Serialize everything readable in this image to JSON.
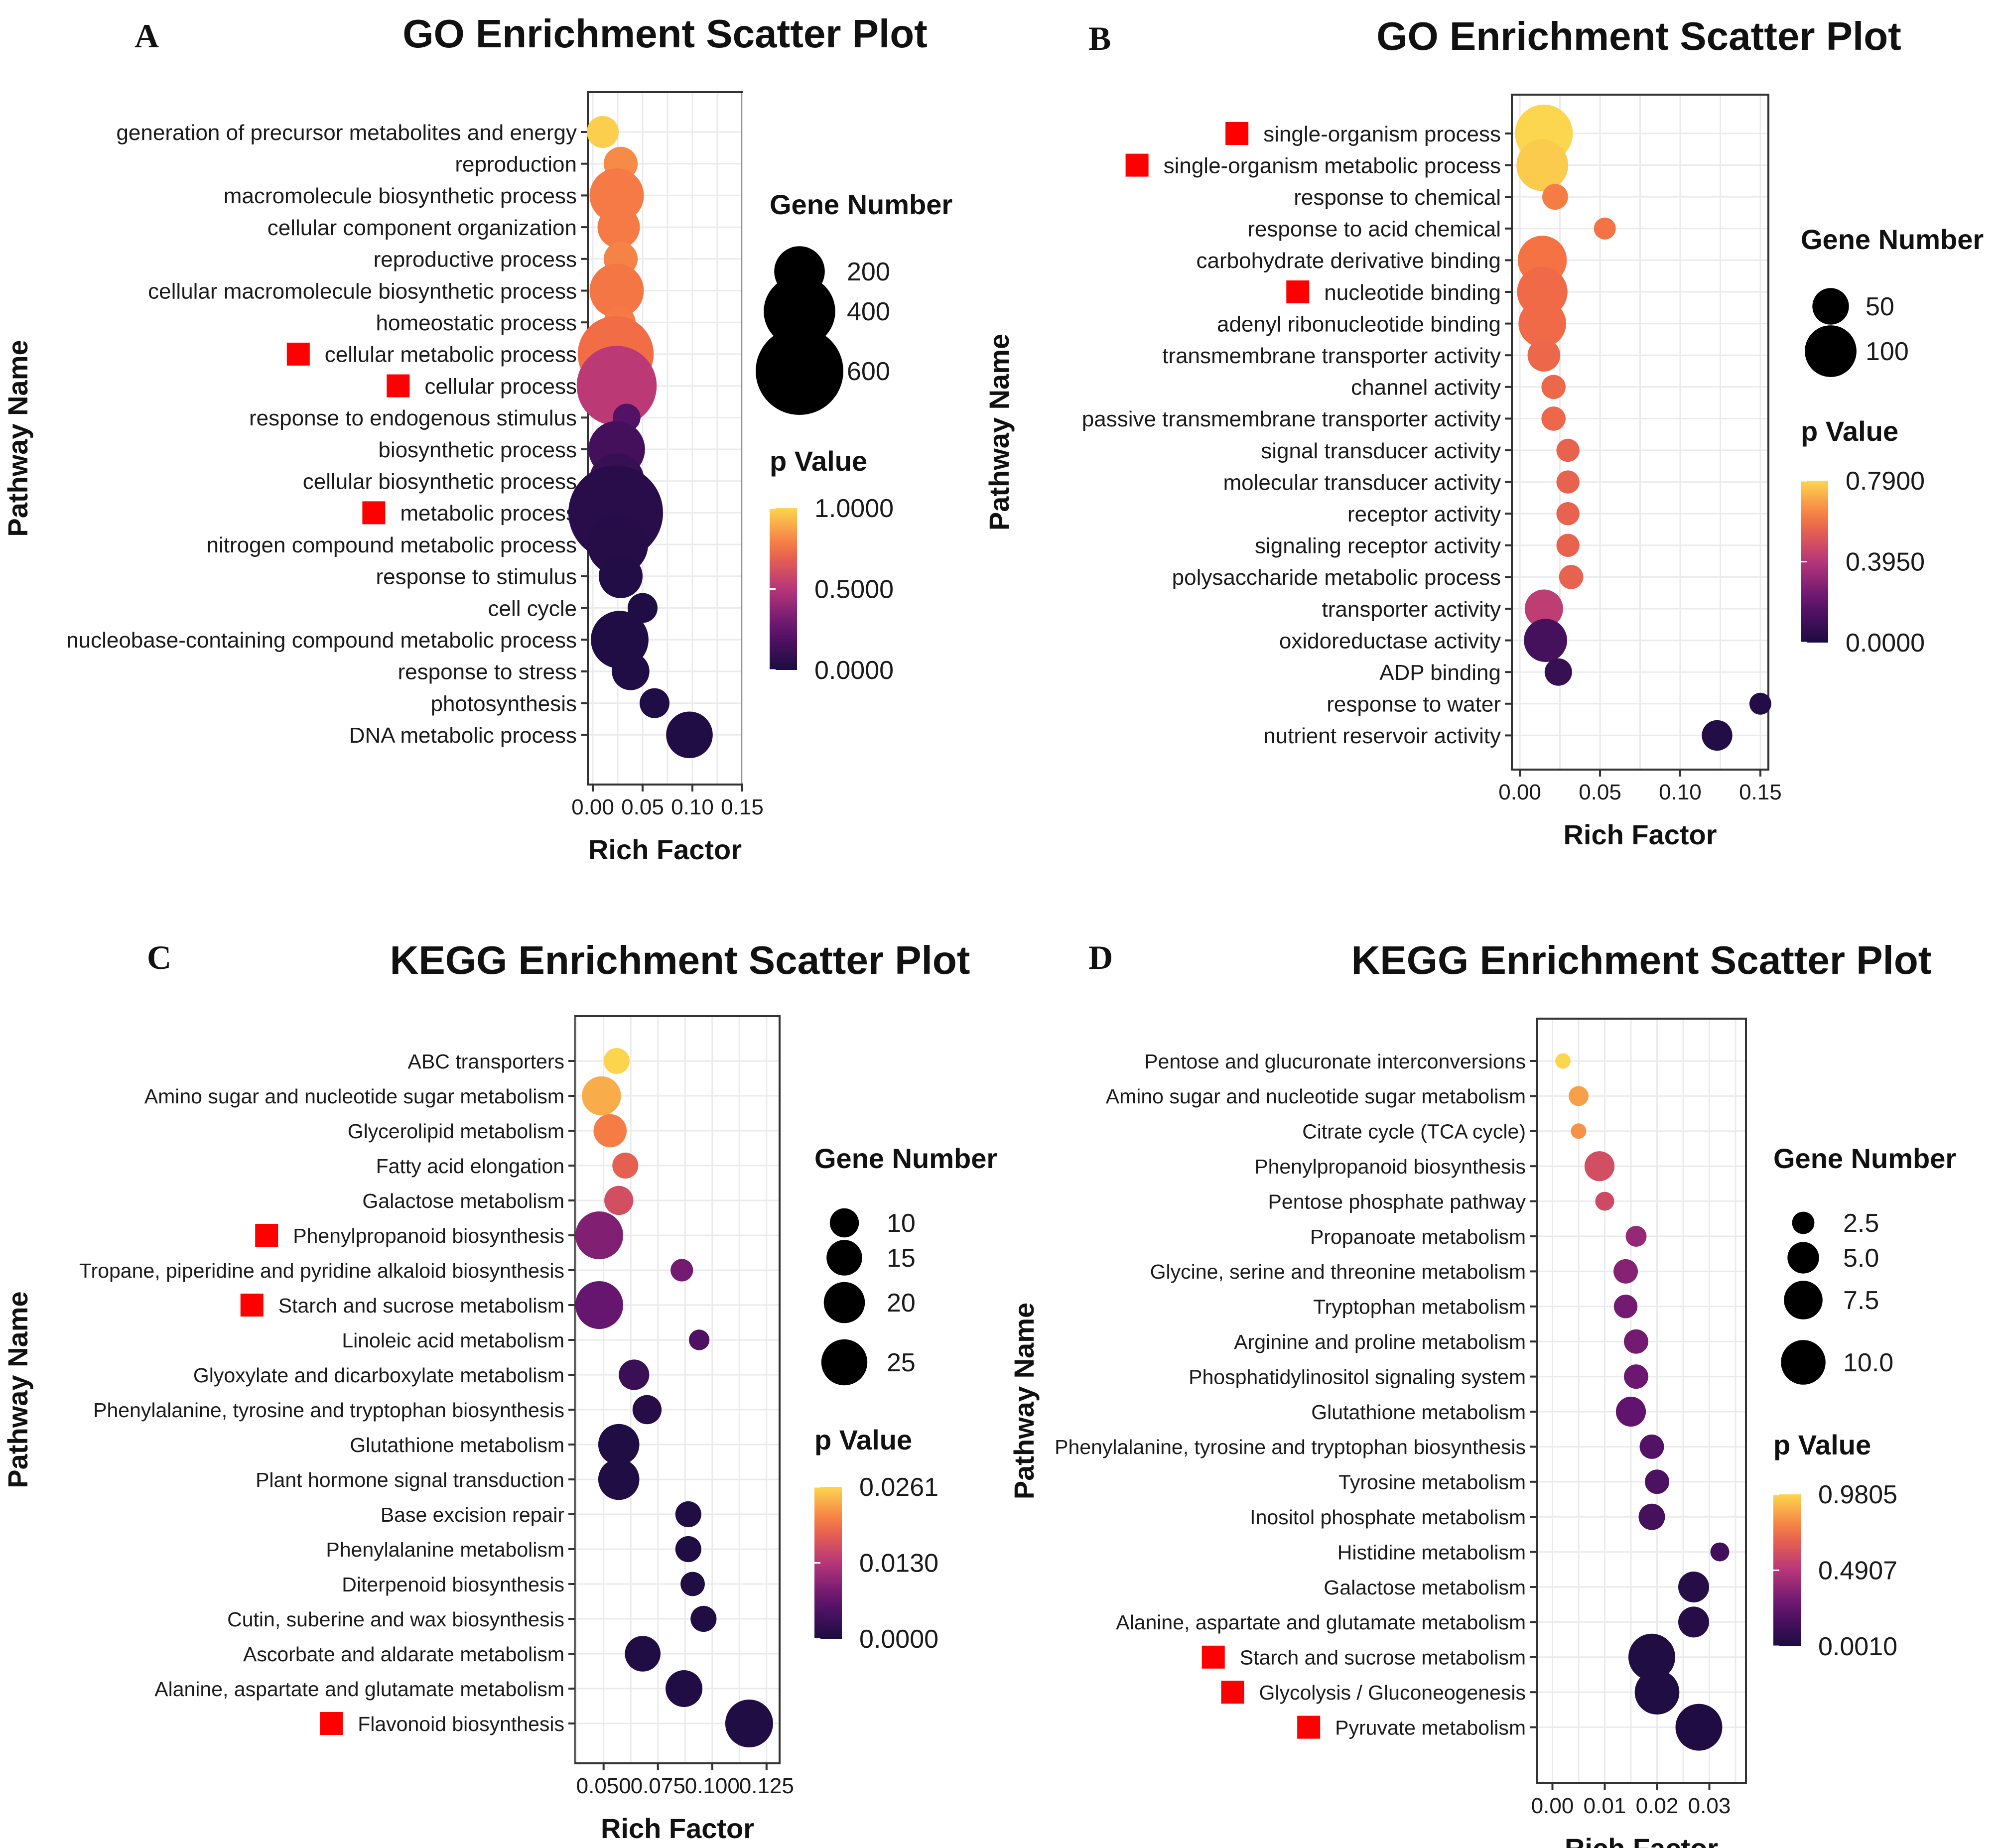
{
  "colors": {
    "viridis_inferno_low": "#1b0c41",
    "viridis_inferno_mid": "#b63679",
    "viridis_inferno_high": "#fcd64e",
    "marker_red": "#ff0000",
    "grid": "#ebebeb",
    "panel_border": "#333333"
  },
  "chart_data": [
    {
      "panel_label": "A",
      "type": "scatter",
      "title": "GO Enrichment Scatter Plot",
      "xlabel": "Rich Factor",
      "ylabel": "Pathway Name",
      "xlim": [
        -0.005,
        0.15
      ],
      "xticks": [
        0.0,
        0.05,
        0.1,
        0.15
      ],
      "xtick_labels": [
        "0.00",
        "0.05",
        "0.10",
        "0.15"
      ],
      "size_legend": {
        "title": "Gene Number",
        "values": [
          200,
          400,
          600
        ],
        "labels": [
          "200",
          "400",
          "600"
        ]
      },
      "color_legend": {
        "title": "p Value",
        "min": 0.0,
        "max": 1.0,
        "labels": [
          "1.0000",
          "0.5000",
          "0.0000"
        ]
      },
      "grid": true,
      "legend_position": "right",
      "categories": [
        "generation of precursor metabolites and energy",
        "reproduction",
        "macromolecule biosynthetic process",
        "cellular component organization",
        "reproductive process",
        "cellular macromolecule biosynthetic process",
        "homeostatic process",
        "cellular metabolic process",
        "cellular process",
        "response to endogenous stimulus",
        "biosynthetic process",
        "cellular biosynthetic process",
        "metabolic process",
        "nitrogen compound metabolic process",
        "response to stimulus",
        "cell cycle",
        "nucleobase-containing compound metabolic process",
        "response to stress",
        "photosynthesis",
        "DNA metabolic process"
      ],
      "marked": [
        7,
        8,
        12
      ],
      "points": [
        {
          "x": 0.01,
          "size": 80,
          "p": 0.98
        },
        {
          "x": 0.028,
          "size": 90,
          "p": 0.82
        },
        {
          "x": 0.024,
          "size": 230,
          "p": 0.78
        },
        {
          "x": 0.026,
          "size": 140,
          "p": 0.78
        },
        {
          "x": 0.028,
          "size": 90,
          "p": 0.8
        },
        {
          "x": 0.024,
          "size": 230,
          "p": 0.77
        },
        {
          "x": 0.027,
          "size": 80,
          "p": 0.78
        },
        {
          "x": 0.023,
          "size": 450,
          "p": 0.74
        },
        {
          "x": 0.024,
          "size": 500,
          "p": 0.52
        },
        {
          "x": 0.034,
          "size": 60,
          "p": 0.2
        },
        {
          "x": 0.024,
          "size": 250,
          "p": 0.15
        },
        {
          "x": 0.024,
          "size": 240,
          "p": 0.1
        },
        {
          "x": 0.023,
          "size": 700,
          "p": 0.05
        },
        {
          "x": 0.025,
          "size": 290,
          "p": 0.04
        },
        {
          "x": 0.028,
          "size": 150,
          "p": 0.03
        },
        {
          "x": 0.05,
          "size": 70,
          "p": 0.02
        },
        {
          "x": 0.027,
          "size": 260,
          "p": 0.02
        },
        {
          "x": 0.038,
          "size": 110,
          "p": 0.02
        },
        {
          "x": 0.062,
          "size": 70,
          "p": 0.02
        },
        {
          "x": 0.097,
          "size": 170,
          "p": 0.02
        }
      ]
    },
    {
      "panel_label": "B",
      "type": "scatter",
      "title": "GO Enrichment Scatter Plot",
      "xlabel": "Rich Factor",
      "ylabel": "Pathway Name",
      "xlim": [
        -0.005,
        0.155
      ],
      "xticks": [
        0.0,
        0.05,
        0.1,
        0.15
      ],
      "xtick_labels": [
        "0.00",
        "0.05",
        "0.10",
        "0.15"
      ],
      "size_legend": {
        "title": "Gene Number",
        "values": [
          50,
          100
        ],
        "labels": [
          "50",
          "100"
        ]
      },
      "color_legend": {
        "title": "p Value",
        "min": 0.0,
        "max": 0.79,
        "labels": [
          "0.7900",
          "0.3950",
          "0.0000"
        ]
      },
      "grid": true,
      "legend_position": "right",
      "categories": [
        "single-organism process",
        "single-organism metabolic process",
        "response to chemical",
        "response to acid chemical",
        "carbohydrate derivative binding",
        "nucleotide binding",
        "adenyl ribonucleotide binding",
        "transmembrane transporter activity",
        "channel activity",
        "passive transmembrane transporter activity",
        "signal transducer activity",
        "molecular transducer activity",
        "receptor activity",
        "signaling receptor activity",
        "polysaccharide metabolic process",
        "transporter activity",
        "oxidoreductase activity",
        "ADP binding",
        "response to water",
        "nutrient reservoir activity"
      ],
      "marked": [
        0,
        1,
        5
      ],
      "points": [
        {
          "x": 0.015,
          "size": 125,
          "p": 0.79
        },
        {
          "x": 0.014,
          "size": 100,
          "p": 0.77
        },
        {
          "x": 0.022,
          "size": 25,
          "p": 0.62
        },
        {
          "x": 0.053,
          "size": 18,
          "p": 0.6
        },
        {
          "x": 0.014,
          "size": 90,
          "p": 0.6
        },
        {
          "x": 0.014,
          "size": 95,
          "p": 0.58
        },
        {
          "x": 0.014,
          "size": 85,
          "p": 0.58
        },
        {
          "x": 0.015,
          "size": 40,
          "p": 0.57
        },
        {
          "x": 0.021,
          "size": 22,
          "p": 0.57
        },
        {
          "x": 0.021,
          "size": 22,
          "p": 0.57
        },
        {
          "x": 0.03,
          "size": 20,
          "p": 0.55
        },
        {
          "x": 0.03,
          "size": 20,
          "p": 0.55
        },
        {
          "x": 0.03,
          "size": 20,
          "p": 0.55
        },
        {
          "x": 0.03,
          "size": 20,
          "p": 0.55
        },
        {
          "x": 0.032,
          "size": 22,
          "p": 0.55
        },
        {
          "x": 0.015,
          "size": 55,
          "p": 0.42
        },
        {
          "x": 0.016,
          "size": 70,
          "p": 0.12
        },
        {
          "x": 0.024,
          "size": 28,
          "p": 0.08
        },
        {
          "x": 0.15,
          "size": 18,
          "p": 0.02
        },
        {
          "x": 0.123,
          "size": 35,
          "p": 0.02
        }
      ]
    },
    {
      "panel_label": "C",
      "type": "scatter",
      "title": "KEGG Enrichment Scatter Plot",
      "xlabel": "Rich Factor",
      "ylabel": "Pathway Name",
      "xlim": [
        0.037,
        0.131
      ],
      "xticks": [
        0.05,
        0.075,
        0.1,
        0.125
      ],
      "xtick_labels": [
        "0.050",
        "0.075",
        "0.100",
        "0.125"
      ],
      "size_legend": {
        "title": "Gene Number",
        "values": [
          10,
          15,
          20,
          25
        ],
        "labels": [
          "10",
          "15",
          "20",
          "25"
        ]
      },
      "color_legend": {
        "title": "p Value",
        "min": 0.0,
        "max": 0.0261,
        "labels": [
          "0.0261",
          "0.0130",
          "0.0000"
        ]
      },
      "grid": true,
      "legend_position": "right",
      "categories": [
        "ABC transporters",
        "Amino sugar and nucleotide sugar metabolism",
        "Glycerolipid metabolism",
        "Fatty acid elongation",
        "Galactose metabolism",
        "Phenylpropanoid biosynthesis",
        "Tropane, piperidine and pyridine alkaloid biosynthesis",
        "Starch and sucrose metabolism",
        "Linoleic acid metabolism",
        "Glyoxylate and dicarboxylate metabolism",
        "Phenylalanine, tyrosine and tryptophan biosynthesis",
        "Glutathione metabolism",
        "Plant hormone signal transduction",
        "Base excision repair",
        "Phenylalanine metabolism",
        "Diterpenoid biosynthesis",
        "Cutin, suberine and wax biosynthesis",
        "Ascorbate and aldarate metabolism",
        "Alanine, aspartate and glutamate metabolism",
        "Flavonoid biosynthesis"
      ],
      "marked": [
        5,
        7,
        19
      ],
      "points": [
        {
          "x": 0.056,
          "size": 8,
          "p": 0.026
        },
        {
          "x": 0.049,
          "size": 18,
          "p": 0.0235
        },
        {
          "x": 0.053,
          "size": 13,
          "p": 0.0205
        },
        {
          "x": 0.06,
          "size": 8,
          "p": 0.018
        },
        {
          "x": 0.057,
          "size": 10,
          "p": 0.016
        },
        {
          "x": 0.048,
          "size": 27,
          "p": 0.009
        },
        {
          "x": 0.086,
          "size": 6,
          "p": 0.008
        },
        {
          "x": 0.048,
          "size": 27,
          "p": 0.007
        },
        {
          "x": 0.094,
          "size": 5,
          "p": 0.005
        },
        {
          "x": 0.064,
          "size": 11,
          "p": 0.003
        },
        {
          "x": 0.07,
          "size": 10,
          "p": 0.001
        },
        {
          "x": 0.057,
          "size": 20,
          "p": 0.0005
        },
        {
          "x": 0.057,
          "size": 20,
          "p": 0.0005
        },
        {
          "x": 0.089,
          "size": 8,
          "p": 0.0005
        },
        {
          "x": 0.089,
          "size": 8,
          "p": 0.0005
        },
        {
          "x": 0.091,
          "size": 7,
          "p": 0.0005
        },
        {
          "x": 0.096,
          "size": 8,
          "p": 0.0005
        },
        {
          "x": 0.068,
          "size": 15,
          "p": 0.0005
        },
        {
          "x": 0.087,
          "size": 16,
          "p": 0.0005
        },
        {
          "x": 0.117,
          "size": 27,
          "p": 0.0005
        }
      ]
    },
    {
      "panel_label": "D",
      "type": "scatter",
      "title": "KEGG Enrichment Scatter Plot",
      "xlabel": "Rich Factor",
      "ylabel": "Pathway Name",
      "xlim": [
        -0.003,
        0.037
      ],
      "xticks": [
        0.0,
        0.01,
        0.02,
        0.03
      ],
      "xtick_labels": [
        "0.00",
        "0.01",
        "0.02",
        "0.03"
      ],
      "size_legend": {
        "title": "Gene Number",
        "values": [
          2.5,
          5.0,
          7.5,
          10.0
        ],
        "labels": [
          "2.5",
          "5.0",
          "7.5",
          "10.0"
        ]
      },
      "color_legend": {
        "title": "p Value",
        "min": 0.001,
        "max": 0.9805,
        "labels": [
          "0.9805",
          "0.4907",
          "0.0010"
        ]
      },
      "grid": true,
      "legend_position": "right",
      "categories": [
        "Pentose and glucuronate interconversions",
        "Amino sugar and nucleotide sugar metabolism",
        "Citrate cycle (TCA cycle)",
        "Phenylpropanoid biosynthesis",
        "Pentose phosphate pathway",
        "Propanoate metabolism",
        "Glycine, serine and threonine metabolism",
        "Tryptophan metabolism",
        "Arginine and proline metabolism",
        "Phosphatidylinositol signaling system",
        "Glutathione metabolism",
        "Phenylalanine, tyrosine and tryptophan biosynthesis",
        "Tyrosine metabolism",
        "Inositol phosphate metabolism",
        "Histidine metabolism",
        "Galactose metabolism",
        "Alanine, aspartate and glutamate metabolism",
        "Starch and sucrose metabolism",
        "Glycolysis / Gluconeogenesis",
        "Pyruvate metabolism"
      ],
      "marked": [
        17,
        18,
        19
      ],
      "points": [
        {
          "x": 0.002,
          "size": 1.2,
          "p": 0.98
        },
        {
          "x": 0.005,
          "size": 2.0,
          "p": 0.85
        },
        {
          "x": 0.005,
          "size": 1.2,
          "p": 0.82
        },
        {
          "x": 0.009,
          "size": 4.5,
          "p": 0.6
        },
        {
          "x": 0.01,
          "size": 1.8,
          "p": 0.58
        },
        {
          "x": 0.016,
          "size": 2.2,
          "p": 0.4
        },
        {
          "x": 0.014,
          "size": 3.0,
          "p": 0.35
        },
        {
          "x": 0.014,
          "size": 2.8,
          "p": 0.3
        },
        {
          "x": 0.016,
          "size": 3.0,
          "p": 0.3
        },
        {
          "x": 0.016,
          "size": 3.0,
          "p": 0.28
        },
        {
          "x": 0.015,
          "size": 4.5,
          "p": 0.25
        },
        {
          "x": 0.019,
          "size": 3.0,
          "p": 0.2
        },
        {
          "x": 0.02,
          "size": 3.0,
          "p": 0.18
        },
        {
          "x": 0.019,
          "size": 3.5,
          "p": 0.15
        },
        {
          "x": 0.032,
          "size": 1.8,
          "p": 0.14
        },
        {
          "x": 0.027,
          "size": 4.8,
          "p": 0.04
        },
        {
          "x": 0.027,
          "size": 4.8,
          "p": 0.04
        },
        {
          "x": 0.019,
          "size": 11,
          "p": 0.02
        },
        {
          "x": 0.02,
          "size": 10,
          "p": 0.02
        },
        {
          "x": 0.028,
          "size": 11,
          "p": 0.01
        }
      ]
    }
  ]
}
